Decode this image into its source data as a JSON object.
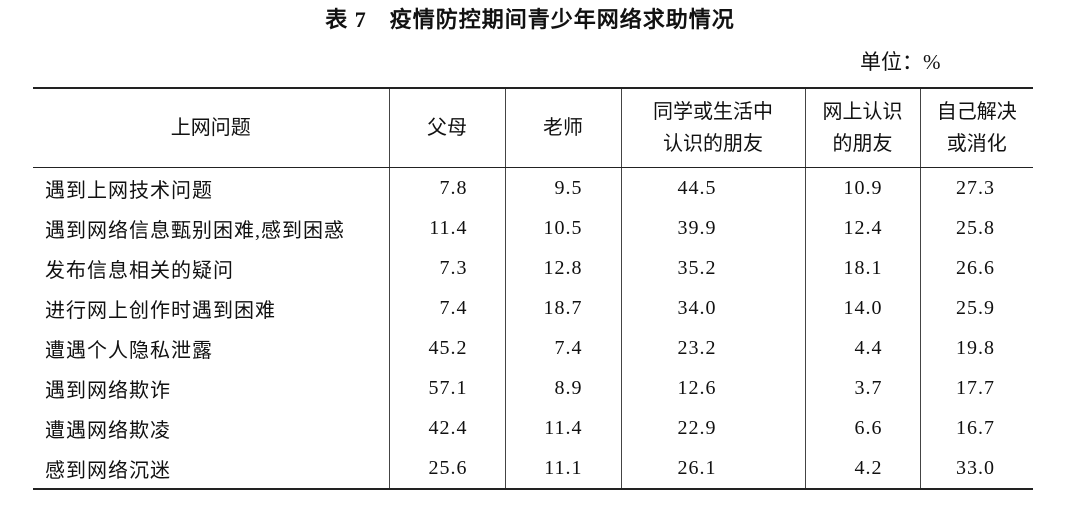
{
  "header": {
    "title": "表 7　疫情防控期间青少年网络求助情况",
    "unit": "单位：%"
  },
  "table": {
    "columns": [
      "上网问题",
      "父母",
      "老师",
      "同学或生活中\n认识的朋友",
      "网上认识\n的朋友",
      "自己解决\n或消化"
    ],
    "rows": [
      [
        "遇到上网技术问题",
        "7.8",
        "9.5",
        "44.5",
        "10.9",
        "27.3"
      ],
      [
        "遇到网络信息甄别困难,感到困惑",
        "11.4",
        "10.5",
        "39.9",
        "12.4",
        "25.8"
      ],
      [
        "发布信息相关的疑问",
        "7.3",
        "12.8",
        "35.2",
        "18.1",
        "26.6"
      ],
      [
        "进行网上创作时遇到困难",
        "7.4",
        "18.7",
        "34.0",
        "14.0",
        "25.9"
      ],
      [
        "遭遇个人隐私泄露",
        "45.2",
        "7.4",
        "23.2",
        "4.4",
        "19.8"
      ],
      [
        "遇到网络欺诈",
        "57.1",
        "8.9",
        "12.6",
        "3.7",
        "17.7"
      ],
      [
        "遭遇网络欺凌",
        "42.4",
        "11.4",
        "22.9",
        "6.6",
        "16.7"
      ],
      [
        "感到网络沉迷",
        "25.6",
        "11.1",
        "26.1",
        "4.2",
        "33.0"
      ]
    ]
  }
}
